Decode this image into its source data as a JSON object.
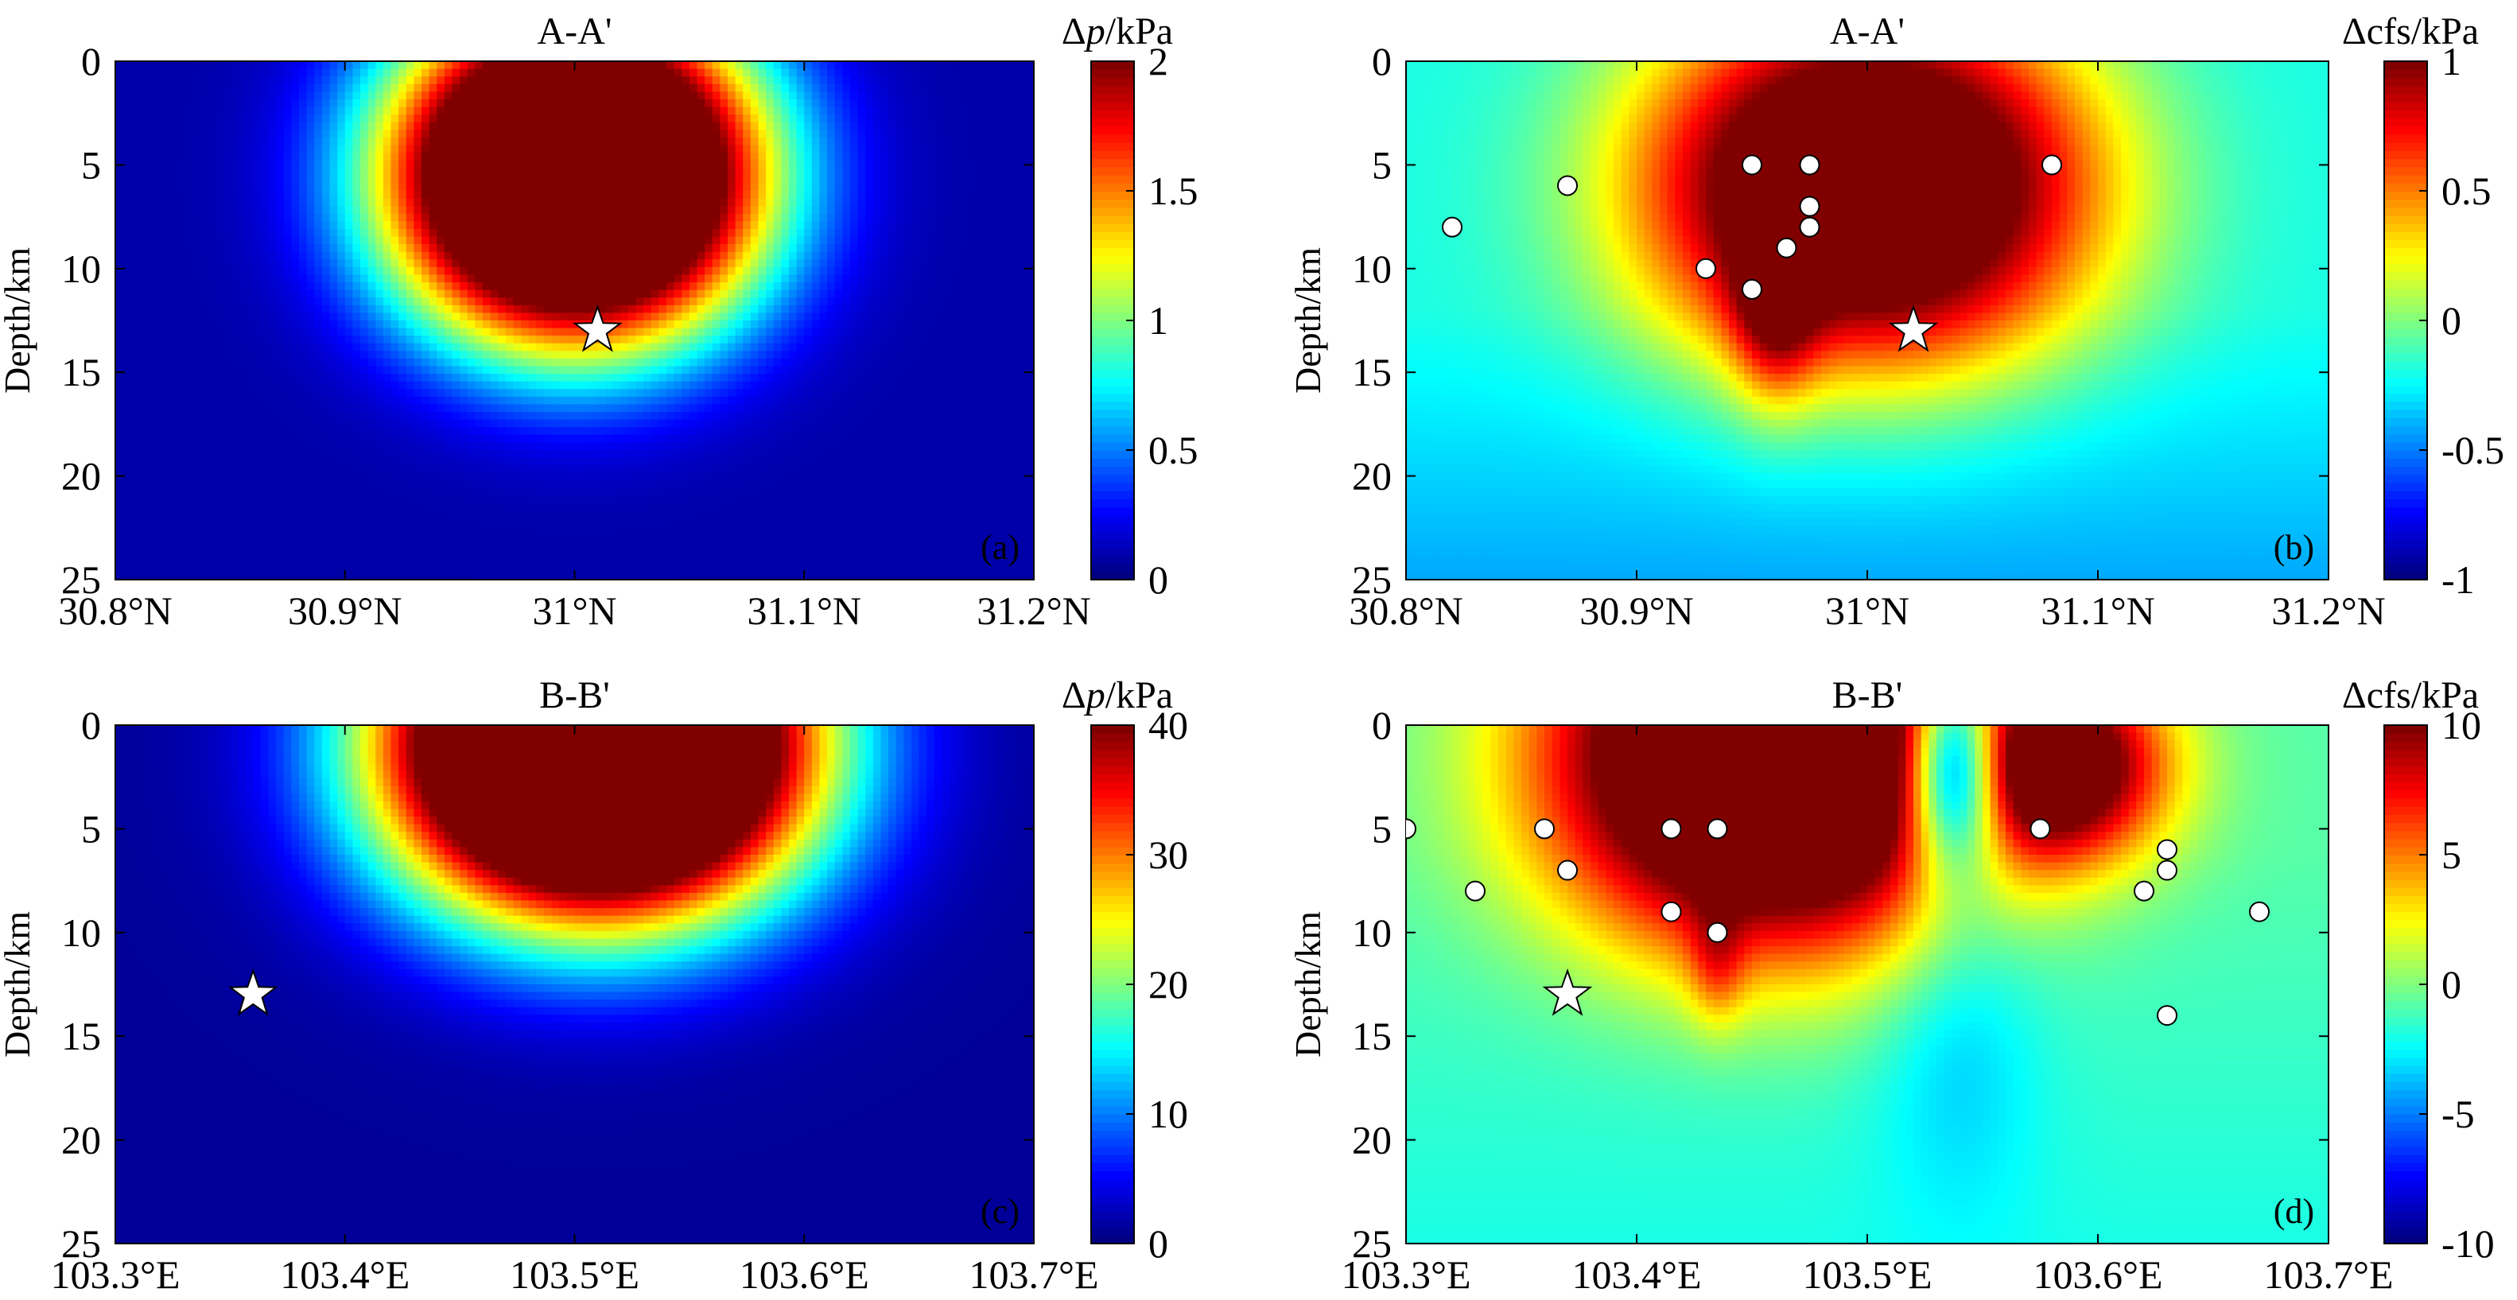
{
  "chart_data": [
    {
      "panel": "(a)",
      "type": "heatmap",
      "title": "A-A'",
      "ylabel": "Depth/km",
      "colorbar_label": "Δp/kPa",
      "colorbar_label_parts": [
        "Δ",
        "p",
        "/kPa"
      ],
      "colormap": "jet",
      "xlim": [
        30.8,
        31.2
      ],
      "ylim": [
        0,
        25
      ],
      "y_reversed": true,
      "clim": [
        0,
        2
      ],
      "x_ticks": [
        30.8,
        30.9,
        31.0,
        31.1,
        31.2
      ],
      "x_tick_labels": [
        "30.8°N",
        "30.9°N",
        "31°N",
        "31.1°N",
        "31.2°N"
      ],
      "y_ticks": [
        0,
        5,
        10,
        15,
        20,
        25
      ],
      "y_tick_labels": [
        "0",
        "5",
        "10",
        "15",
        "20",
        "25"
      ],
      "colorbar_ticks": [
        0,
        0.5,
        1,
        1.5,
        2
      ],
      "colorbar_tick_labels": [
        "0",
        "0.5",
        "1",
        "1.5",
        "2"
      ],
      "field": {
        "background": 0.08,
        "blobs": [
          {
            "x": 31.0,
            "y": 5.5,
            "sx": 0.085,
            "sy": 8.5,
            "amp": 3.2,
            "p": 2.6
          }
        ]
      },
      "star": {
        "x": 31.01,
        "y": 13.0
      },
      "events": []
    },
    {
      "panel": "(b)",
      "type": "heatmap",
      "title": "A-A'",
      "ylabel": "Depth/km",
      "colorbar_label": "Δcfs/kPa",
      "colorbar_label_parts": [
        "Δcfs/kPa"
      ],
      "colormap": "jet",
      "xlim": [
        30.8,
        31.2
      ],
      "ylim": [
        0,
        25
      ],
      "y_reversed": true,
      "clim": [
        -1,
        1
      ],
      "x_ticks": [
        30.8,
        30.9,
        31.0,
        31.1,
        31.2
      ],
      "x_tick_labels": [
        "30.8°N",
        "30.9°N",
        "31°N",
        "31.1°N",
        "31.2°N"
      ],
      "y_ticks": [
        0,
        5,
        10,
        15,
        20,
        25
      ],
      "y_tick_labels": [
        "0",
        "5",
        "10",
        "15",
        "20",
        "25"
      ],
      "colorbar_ticks": [
        -1,
        -0.5,
        0,
        0.5,
        1
      ],
      "colorbar_tick_labels": [
        "-1",
        "-0.5",
        "0",
        "0.5",
        "1"
      ],
      "field": {
        "background": -0.2,
        "gradient": {
          "y0": 12,
          "y1": 25,
          "v1": -0.42
        },
        "blobs": [
          {
            "x": 31.0,
            "y": 6.0,
            "sx": 0.1,
            "sy": 9.0,
            "amp": 1.75,
            "p": 2.4
          },
          {
            "x": 30.96,
            "y": 12.0,
            "sx": 0.018,
            "sy": 4.5,
            "amp": 0.6,
            "p": 2
          }
        ]
      },
      "star": {
        "x": 31.02,
        "y": 13.0
      },
      "events": [
        {
          "x": 30.82,
          "y": 8
        },
        {
          "x": 30.87,
          "y": 6
        },
        {
          "x": 30.93,
          "y": 10
        },
        {
          "x": 30.95,
          "y": 11
        },
        {
          "x": 30.95,
          "y": 5
        },
        {
          "x": 30.965,
          "y": 9
        },
        {
          "x": 30.975,
          "y": 5
        },
        {
          "x": 30.975,
          "y": 7
        },
        {
          "x": 30.975,
          "y": 8
        },
        {
          "x": 31.08,
          "y": 5
        }
      ]
    },
    {
      "panel": "(c)",
      "type": "heatmap",
      "title": "B-B'",
      "ylabel": "Depth/km",
      "colorbar_label": "Δp/kPa",
      "colorbar_label_parts": [
        "Δ",
        "p",
        "/kPa"
      ],
      "colormap": "jet",
      "xlim": [
        103.3,
        103.7
      ],
      "ylim": [
        0,
        25
      ],
      "y_reversed": true,
      "clim": [
        0,
        40
      ],
      "x_ticks": [
        103.3,
        103.4,
        103.5,
        103.6,
        103.7
      ],
      "x_tick_labels": [
        "103.3°E",
        "103.4°E",
        "103.5°E",
        "103.6°E",
        "103.7°E"
      ],
      "y_ticks": [
        0,
        5,
        10,
        15,
        20,
        25
      ],
      "y_tick_labels": [
        "0",
        "5",
        "10",
        "15",
        "20",
        "25"
      ],
      "colorbar_ticks": [
        0,
        10,
        20,
        30,
        40
      ],
      "colorbar_tick_labels": [
        "0",
        "10",
        "20",
        "30",
        "40"
      ],
      "field": {
        "background": 1.0,
        "blobs": [
          {
            "x": 103.51,
            "y": 1.0,
            "sx": 0.095,
            "sy": 8.5,
            "amp": 75,
            "p": 2.4
          }
        ]
      },
      "star": {
        "x": 103.36,
        "y": 13.0
      },
      "events": []
    },
    {
      "panel": "(d)",
      "type": "heatmap",
      "title": "B-B'",
      "ylabel": "Depth/km",
      "colorbar_label": "Δcfs/kPa",
      "colorbar_label_parts": [
        "Δcfs/kPa"
      ],
      "colormap": "jet",
      "xlim": [
        103.3,
        103.7
      ],
      "ylim": [
        0,
        25
      ],
      "y_reversed": true,
      "clim": [
        -10,
        10
      ],
      "x_ticks": [
        103.3,
        103.4,
        103.5,
        103.6,
        103.7
      ],
      "x_tick_labels": [
        "103.3°E",
        "103.4°E",
        "103.5°E",
        "103.6°E",
        "103.7°E"
      ],
      "y_ticks": [
        0,
        5,
        10,
        15,
        20,
        25
      ],
      "y_tick_labels": [
        "0",
        "5",
        "10",
        "15",
        "20",
        "25"
      ],
      "colorbar_ticks": [
        -10,
        -5,
        0,
        5,
        10
      ],
      "colorbar_tick_labels": [
        "-10",
        "-5",
        "0",
        "5",
        "10"
      ],
      "field": {
        "background": -0.8,
        "gradient": {
          "y0": 6,
          "y1": 25,
          "v1": -2.0
        },
        "blobs": [
          {
            "x": 103.46,
            "y": 1.5,
            "sx": 0.1,
            "sy": 9.5,
            "amp": 19,
            "p": 2.4
          },
          {
            "x": 103.585,
            "y": 2.0,
            "sx": 0.045,
            "sy": 4.5,
            "amp": 13,
            "p": 2
          },
          {
            "x": 103.538,
            "y": 2.0,
            "sx": 0.022,
            "sy": 5.0,
            "amp": -17,
            "p": 2
          },
          {
            "x": 103.54,
            "y": 14.0,
            "sx": 0.035,
            "sy": 9.0,
            "amp": -2.2,
            "p": 2
          },
          {
            "x": 103.435,
            "y": 11.5,
            "sx": 0.012,
            "sy": 3.0,
            "amp": 3.5,
            "p": 2
          }
        ]
      },
      "star": {
        "x": 103.37,
        "y": 13.0
      },
      "events": [
        {
          "x": 103.3,
          "y": 5
        },
        {
          "x": 103.33,
          "y": 8
        },
        {
          "x": 103.36,
          "y": 5
        },
        {
          "x": 103.37,
          "y": 7
        },
        {
          "x": 103.415,
          "y": 5
        },
        {
          "x": 103.415,
          "y": 9
        },
        {
          "x": 103.435,
          "y": 5
        },
        {
          "x": 103.435,
          "y": 10
        },
        {
          "x": 103.575,
          "y": 5
        },
        {
          "x": 103.62,
          "y": 8
        },
        {
          "x": 103.63,
          "y": 6
        },
        {
          "x": 103.63,
          "y": 7
        },
        {
          "x": 103.63,
          "y": 14
        },
        {
          "x": 103.67,
          "y": 9
        }
      ]
    }
  ]
}
